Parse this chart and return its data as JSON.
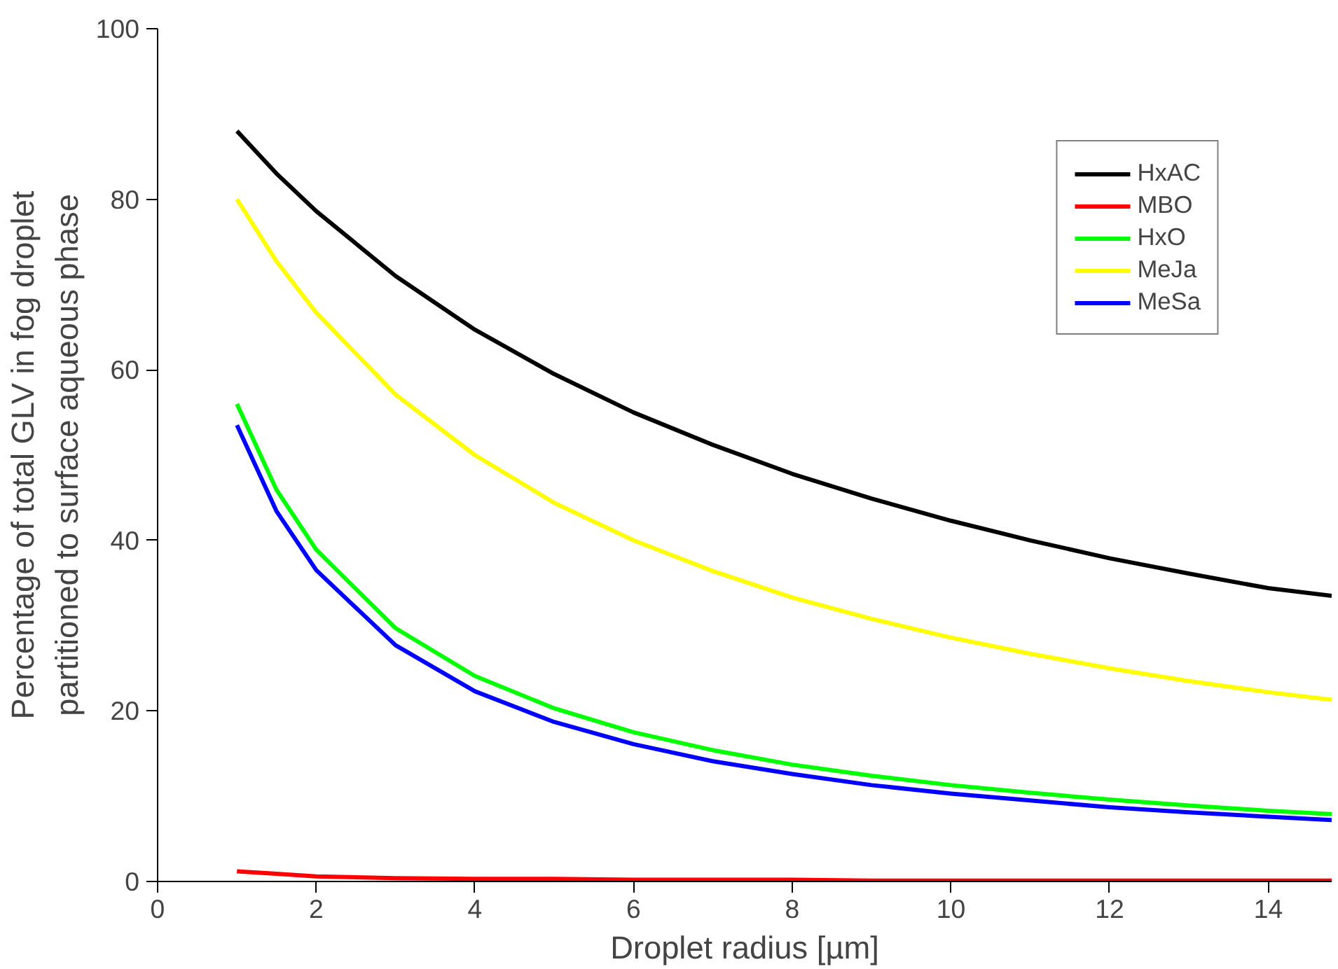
{
  "chart_data": {
    "type": "line",
    "xlabel": "Droplet radius [µm]",
    "ylabel": "Percentage of total GLV in fog droplet\npartitioned to surface aqueous phase",
    "xlim": [
      0,
      14.8
    ],
    "ylim": [
      0,
      100
    ],
    "xticks": [
      0,
      2,
      4,
      6,
      8,
      10,
      12,
      14
    ],
    "yticks": [
      0,
      20,
      40,
      60,
      80,
      100
    ],
    "grid": false,
    "legend": "top right",
    "marker": "none",
    "line_style": "solid",
    "x": [
      1,
      1.5,
      2,
      3,
      4,
      5,
      6,
      7,
      8,
      9,
      10,
      11,
      12,
      13,
      14,
      14.8
    ],
    "series": [
      {
        "name": "HxAC",
        "color": "#000000",
        "values": [
          88.0,
          83.0,
          78.6,
          71.0,
          64.7,
          59.5,
          55.0,
          51.2,
          47.8,
          44.9,
          42.3,
          40.0,
          37.9,
          36.1,
          34.4,
          33.5
        ]
      },
      {
        "name": "MBO",
        "color": "#ff0000",
        "values": [
          1.2,
          0.9,
          0.6,
          0.4,
          0.3,
          0.3,
          0.2,
          0.2,
          0.2,
          0.1,
          0.1,
          0.1,
          0.1,
          0.1,
          0.1,
          0.1
        ]
      },
      {
        "name": "HxO",
        "color": "#00ff00",
        "values": [
          56.0,
          45.9,
          38.9,
          29.7,
          24.1,
          20.3,
          17.5,
          15.4,
          13.7,
          12.4,
          11.3,
          10.4,
          9.6,
          8.9,
          8.3,
          7.9
        ]
      },
      {
        "name": "MeJa",
        "color": "#ffff00",
        "values": [
          80.0,
          72.7,
          66.7,
          57.1,
          50.0,
          44.4,
          40.0,
          36.4,
          33.3,
          30.8,
          28.6,
          26.7,
          25.0,
          23.5,
          22.2,
          21.3
        ]
      },
      {
        "name": "MeSa",
        "color": "#0000ff",
        "values": [
          53.5,
          43.4,
          36.5,
          27.7,
          22.3,
          18.7,
          16.1,
          14.1,
          12.6,
          11.3,
          10.3,
          9.5,
          8.7,
          8.1,
          7.6,
          7.2
        ]
      }
    ]
  }
}
